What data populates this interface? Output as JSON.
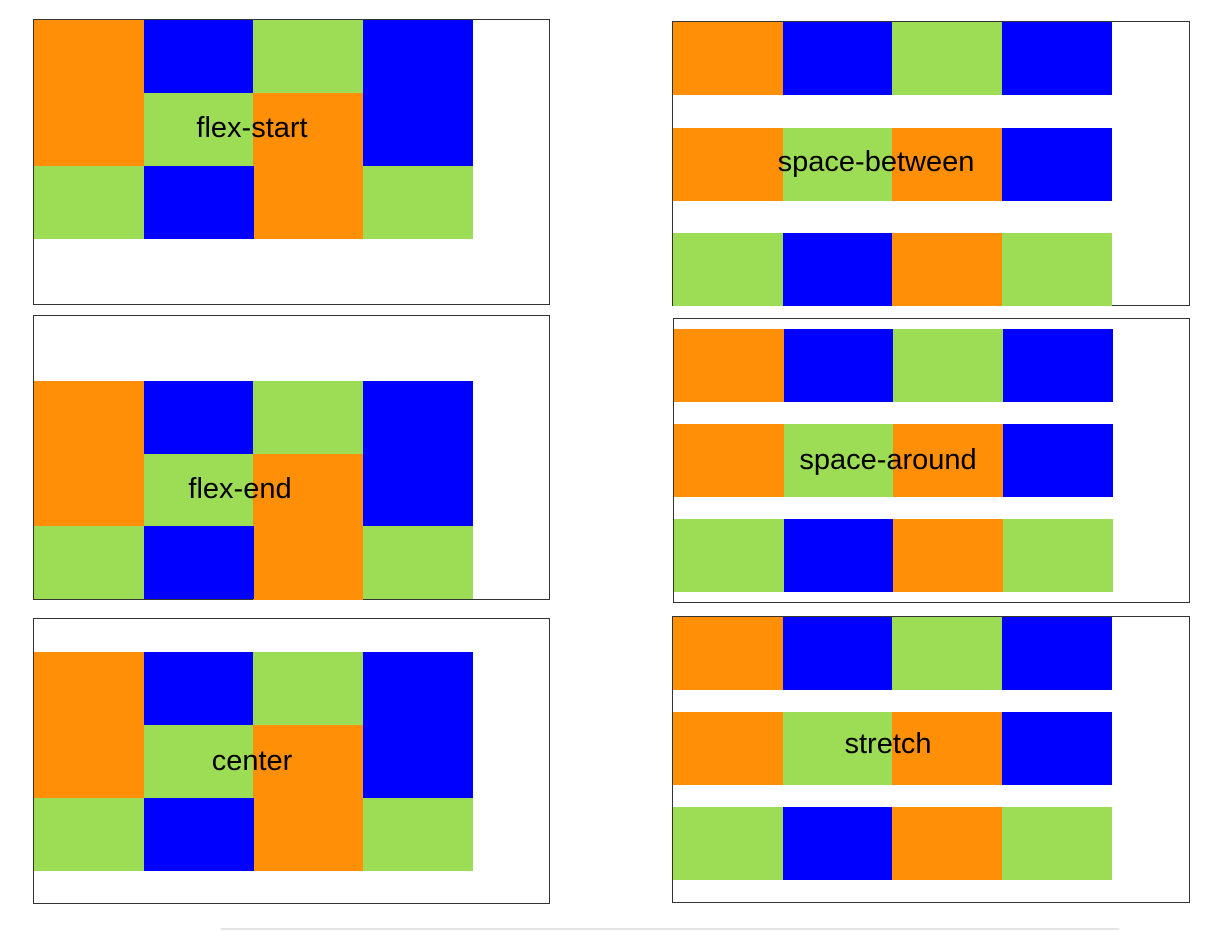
{
  "colors": {
    "O": "#fe8f07",
    "B": "#0000fe",
    "G": "#9cdd55",
    "border": "#333333",
    "background": "#ffffff"
  },
  "panels": [
    {
      "id": "flex-start",
      "label": "flex-start",
      "rows": [
        "OBGB",
        "OGOB",
        "GBOG"
      ],
      "tall": true
    },
    {
      "id": "space-between",
      "label": "space-between",
      "rows": [
        "OBGB",
        "OGOB",
        "GBOG"
      ],
      "tall": false
    },
    {
      "id": "flex-end",
      "label": "flex-end",
      "rows": [
        "OBGB",
        "OGOB",
        "GBOG"
      ],
      "tall": true
    },
    {
      "id": "space-around",
      "label": "space-around",
      "rows": [
        "OBGB",
        "OGOB",
        "GBOG"
      ],
      "tall": false
    },
    {
      "id": "center",
      "label": "center",
      "rows": [
        "OBGB",
        "OGOB",
        "GBOG"
      ],
      "tall": true
    },
    {
      "id": "stretch",
      "label": "stretch",
      "rows": [
        "OBGB",
        "OGOB",
        "GBOG"
      ],
      "tall": false
    }
  ]
}
